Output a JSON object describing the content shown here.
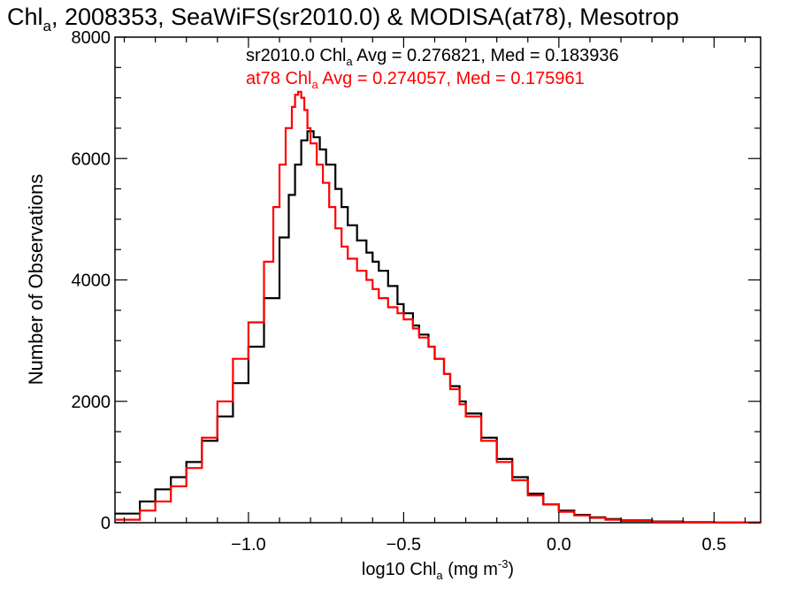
{
  "chart_data": {
    "type": "line",
    "title": {
      "pre": "Chl",
      "sub": "a",
      "post": ", 2008353, SeaWiFS(sr2010.0) & MODISA(at78), Mesotrop"
    },
    "xlabel": {
      "pre": "log10 Chl",
      "sub": "a",
      "mid": " (mg m",
      "sup": "-3",
      "post": ")"
    },
    "ylabel": "Number of Observations",
    "xlim": [
      -1.43,
      0.65
    ],
    "ylim": [
      0,
      8000
    ],
    "x_ticks": [
      -1.0,
      -0.5,
      0.0,
      0.5
    ],
    "x_tick_labels": [
      "−1.0",
      "−0.5",
      "0.0",
      "0.5"
    ],
    "y_ticks": [
      0,
      2000,
      4000,
      6000,
      8000
    ],
    "y_tick_labels": [
      "0",
      "2000",
      "4000",
      "6000",
      "8000"
    ],
    "grid": false,
    "line_style": "step",
    "annotations": [
      {
        "pre": "sr2010.0 Chl",
        "sub": "a",
        "post": " Avg = 0.276821, Med = 0.183936",
        "color": "#000000"
      },
      {
        "pre": "at78 Chl",
        "sub": "a",
        "post": " Avg = 0.274057, Med = 0.175961",
        "color": "#ff0000"
      }
    ],
    "series": [
      {
        "color": "#000000",
        "x": [
          -1.43,
          -1.35,
          -1.3,
          -1.25,
          -1.2,
          -1.15,
          -1.1,
          -1.05,
          -1.0,
          -0.95,
          -0.9,
          -0.87,
          -0.85,
          -0.83,
          -0.81,
          -0.79,
          -0.77,
          -0.75,
          -0.72,
          -0.7,
          -0.68,
          -0.65,
          -0.62,
          -0.6,
          -0.58,
          -0.55,
          -0.52,
          -0.5,
          -0.47,
          -0.45,
          -0.42,
          -0.4,
          -0.37,
          -0.35,
          -0.32,
          -0.3,
          -0.25,
          -0.2,
          -0.15,
          -0.1,
          -0.05,
          0.0,
          0.05,
          0.1,
          0.15,
          0.2,
          0.3,
          0.4,
          0.5,
          0.65
        ],
        "y": [
          150,
          350,
          550,
          750,
          1000,
          1350,
          1750,
          2300,
          2900,
          3700,
          4700,
          5400,
          5900,
          6300,
          6450,
          6350,
          6150,
          5900,
          5500,
          5200,
          4900,
          4650,
          4450,
          4300,
          4150,
          3900,
          3600,
          3450,
          3250,
          3100,
          2900,
          2700,
          2450,
          2250,
          2000,
          1800,
          1400,
          1050,
          750,
          480,
          300,
          200,
          130,
          90,
          60,
          40,
          20,
          10,
          5,
          0
        ]
      },
      {
        "color": "#ff0000",
        "x": [
          -1.43,
          -1.35,
          -1.3,
          -1.25,
          -1.2,
          -1.15,
          -1.1,
          -1.05,
          -1.0,
          -0.95,
          -0.92,
          -0.9,
          -0.88,
          -0.86,
          -0.85,
          -0.84,
          -0.83,
          -0.82,
          -0.81,
          -0.8,
          -0.78,
          -0.76,
          -0.74,
          -0.72,
          -0.7,
          -0.68,
          -0.65,
          -0.62,
          -0.6,
          -0.58,
          -0.55,
          -0.52,
          -0.5,
          -0.47,
          -0.45,
          -0.42,
          -0.4,
          -0.37,
          -0.35,
          -0.32,
          -0.3,
          -0.25,
          -0.2,
          -0.15,
          -0.1,
          -0.05,
          0.0,
          0.05,
          0.1,
          0.15,
          0.2,
          0.3,
          0.4,
          0.5,
          0.65
        ],
        "y": [
          50,
          200,
          350,
          600,
          900,
          1400,
          2000,
          2700,
          3300,
          4300,
          5200,
          5900,
          6500,
          6850,
          7050,
          7100,
          7000,
          6800,
          6500,
          6250,
          5900,
          5600,
          5200,
          4850,
          4550,
          4350,
          4150,
          4000,
          3850,
          3700,
          3550,
          3450,
          3350,
          3200,
          3050,
          2900,
          2700,
          2450,
          2200,
          1950,
          1750,
          1350,
          1000,
          700,
          450,
          300,
          180,
          120,
          80,
          50,
          30,
          15,
          8,
          3,
          0
        ]
      }
    ]
  }
}
